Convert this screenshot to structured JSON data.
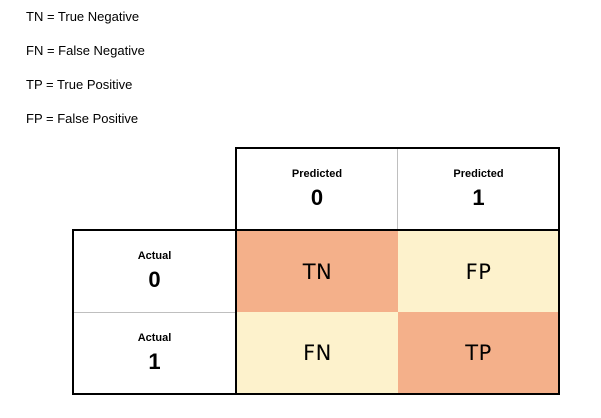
{
  "definitions": [
    "TN = True Negative",
    "FN = False Negative",
    "TP = True Positive",
    "FP = False Positive"
  ],
  "matrix": {
    "column_headers": [
      {
        "label": "Predicted",
        "value": "0"
      },
      {
        "label": "Predicted",
        "value": "1"
      }
    ],
    "row_headers": [
      {
        "label": "Actual",
        "value": "0"
      },
      {
        "label": "Actual",
        "value": "1"
      }
    ],
    "cells": [
      [
        "TN",
        "FP"
      ],
      [
        "FN",
        "TP"
      ]
    ],
    "colors": {
      "diagonal": "#f4b08a",
      "off_diagonal": "#fdf2cc",
      "border": "#000000",
      "inner_divider": "#bfbfbf"
    }
  }
}
